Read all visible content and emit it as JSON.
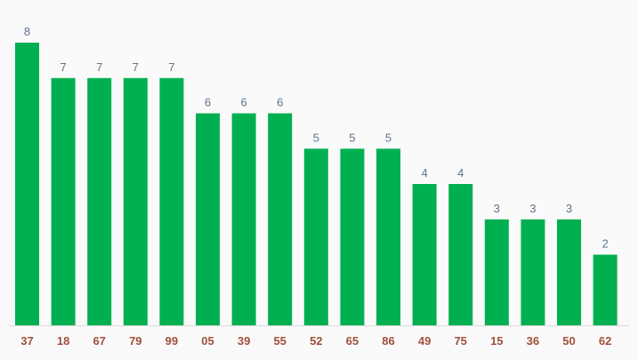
{
  "chart_data": {
    "type": "bar",
    "categories": [
      "37",
      "18",
      "67",
      "79",
      "99",
      "05",
      "39",
      "55",
      "52",
      "65",
      "86",
      "49",
      "75",
      "15",
      "36",
      "50",
      "62"
    ],
    "values": [
      8,
      7,
      7,
      7,
      7,
      6,
      6,
      6,
      5,
      5,
      5,
      4,
      4,
      3,
      3,
      3,
      2
    ],
    "ylim": [
      0,
      8
    ],
    "grid": false,
    "data_labels": true
  },
  "colors": {
    "bar": "#00b050",
    "value_label": "#5b7390",
    "tick_label": "#a0503a",
    "axis_line": "#d9d9d9",
    "background": "#fafafa"
  }
}
